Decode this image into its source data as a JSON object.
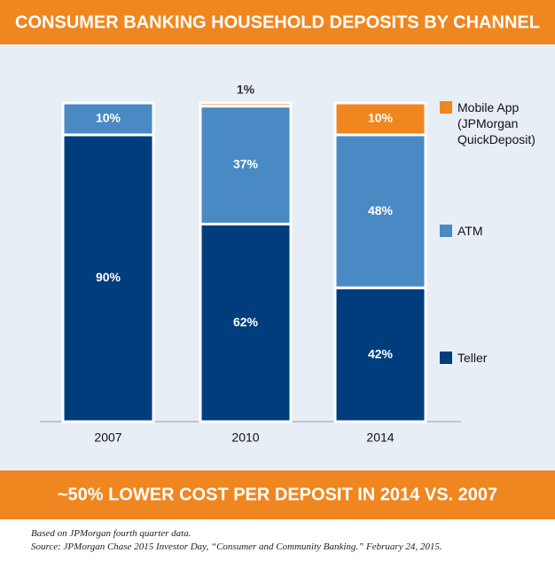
{
  "chart_data": {
    "type": "stacked_bar",
    "title": "CONSUMER BANKING HOUSEHOLD DEPOSITS BY CHANNEL",
    "subtitle": "~50% LOWER COST PER DEPOSIT IN 2014 VS. 2007",
    "notes": [
      "Based on JPMorgan fourth quarter data.",
      "Source: JPMorgan Chase 2015 Investor Day, “Consumer and Community Banking.” February 24, 2015."
    ],
    "categories": [
      "2007",
      "2010",
      "2014"
    ],
    "ylim": [
      0,
      100
    ],
    "series": [
      {
        "name": "Teller",
        "color": "#003d7c",
        "values": [
          90,
          62,
          42
        ],
        "value_labels": [
          "90%",
          "62%",
          "42%"
        ]
      },
      {
        "name": "ATM",
        "color": "#4a8ac4",
        "values": [
          10,
          37,
          48
        ],
        "value_labels": [
          "10%",
          "37%",
          "48%"
        ]
      },
      {
        "name": "Mobile App (JPMorgan QuickDeposit)",
        "color": "#f0861f",
        "values": [
          null,
          1,
          10
        ],
        "value_labels": [
          null,
          "1%",
          "10%"
        ]
      }
    ]
  }
}
